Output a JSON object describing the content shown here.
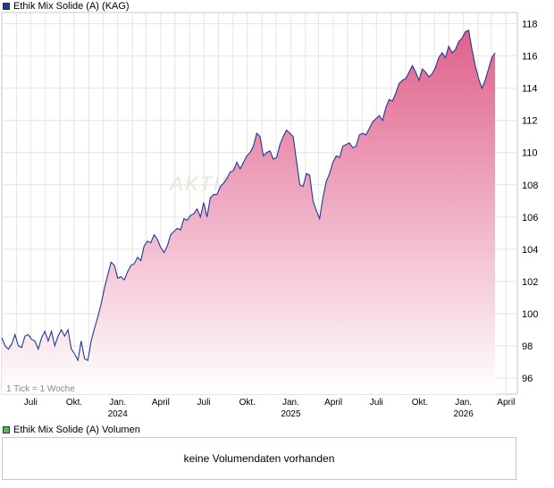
{
  "price_legend": {
    "label": "Ethik Mix Solide (A) (KAG)",
    "color": "#1f3a93"
  },
  "volume_legend": {
    "label": "Ethik Mix Solide (A) Volumen",
    "color": "#5cb85c"
  },
  "volume_message": "keine Volumendaten vorhanden",
  "tick_note": "1 Tick = 1 Woche",
  "watermark": "AKTIEN",
  "chart_data": {
    "type": "area",
    "title": "",
    "xlabel": "",
    "ylabel": "",
    "ylim": [
      95,
      118.7
    ],
    "y_ticks": [
      "96",
      "98",
      "100",
      "102",
      "104",
      "106",
      "108",
      "110",
      "112",
      "114",
      "116",
      "118"
    ],
    "x_start": "2023-05-01",
    "x_end": "2026-04-25",
    "x_ticks": [
      {
        "date": "2023-07-01",
        "label": "Juli",
        "sub": ""
      },
      {
        "date": "2023-10-01",
        "label": "Okt.",
        "sub": ""
      },
      {
        "date": "2024-01-01",
        "label": "Jan.",
        "sub": "2024"
      },
      {
        "date": "2024-04-01",
        "label": "April",
        "sub": ""
      },
      {
        "date": "2024-07-01",
        "label": "Juli",
        "sub": ""
      },
      {
        "date": "2024-10-01",
        "label": "Okt.",
        "sub": ""
      },
      {
        "date": "2025-01-01",
        "label": "Jan.",
        "sub": "2025"
      },
      {
        "date": "2025-04-01",
        "label": "April",
        "sub": ""
      },
      {
        "date": "2025-07-01",
        "label": "Juli",
        "sub": ""
      },
      {
        "date": "2025-10-01",
        "label": "Okt.",
        "sub": ""
      },
      {
        "date": "2026-01-01",
        "label": "Jan.",
        "sub": "2026"
      },
      {
        "date": "2026-04-01",
        "label": "April",
        "sub": ""
      }
    ],
    "series": [
      {
        "line_color": "#1f3a93",
        "fill_top": "#e0608c",
        "fill_bottom": "#ffffff",
        "points": [
          [
            "2023-05-01",
            98.5
          ],
          [
            "2023-05-08",
            98.0
          ],
          [
            "2023-05-15",
            97.8
          ],
          [
            "2023-05-22",
            98.1
          ],
          [
            "2023-05-29",
            98.7
          ],
          [
            "2023-06-05",
            98.0
          ],
          [
            "2023-06-12",
            97.9
          ],
          [
            "2023-06-19",
            98.6
          ],
          [
            "2023-06-26",
            98.7
          ],
          [
            "2023-07-03",
            98.4
          ],
          [
            "2023-07-10",
            98.3
          ],
          [
            "2023-07-17",
            97.8
          ],
          [
            "2023-07-24",
            98.5
          ],
          [
            "2023-07-31",
            98.9
          ],
          [
            "2023-08-07",
            98.3
          ],
          [
            "2023-08-14",
            98.9
          ],
          [
            "2023-08-21",
            98.0
          ],
          [
            "2023-08-28",
            98.6
          ],
          [
            "2023-09-04",
            99.0
          ],
          [
            "2023-09-11",
            98.6
          ],
          [
            "2023-09-18",
            99.0
          ],
          [
            "2023-09-25",
            97.8
          ],
          [
            "2023-10-02",
            97.5
          ],
          [
            "2023-10-09",
            97.1
          ],
          [
            "2023-10-16",
            98.3
          ],
          [
            "2023-10-23",
            97.2
          ],
          [
            "2023-10-30",
            97.1
          ],
          [
            "2023-11-06",
            98.3
          ],
          [
            "2023-11-13",
            99.1
          ],
          [
            "2023-11-20",
            99.8
          ],
          [
            "2023-11-27",
            100.6
          ],
          [
            "2023-12-04",
            101.6
          ],
          [
            "2023-12-11",
            102.4
          ],
          [
            "2023-12-18",
            103.2
          ],
          [
            "2023-12-25",
            103.0
          ],
          [
            "2024-01-01",
            102.2
          ],
          [
            "2024-01-08",
            102.3
          ],
          [
            "2024-01-15",
            102.1
          ],
          [
            "2024-01-22",
            102.6
          ],
          [
            "2024-01-29",
            103.0
          ],
          [
            "2024-02-05",
            103.1
          ],
          [
            "2024-02-12",
            103.5
          ],
          [
            "2024-02-19",
            103.3
          ],
          [
            "2024-02-26",
            104.2
          ],
          [
            "2024-03-04",
            104.5
          ],
          [
            "2024-03-11",
            104.4
          ],
          [
            "2024-03-18",
            104.9
          ],
          [
            "2024-03-25",
            104.6
          ],
          [
            "2024-04-01",
            104.1
          ],
          [
            "2024-04-08",
            103.8
          ],
          [
            "2024-04-15",
            104.2
          ],
          [
            "2024-04-22",
            104.9
          ],
          [
            "2024-04-29",
            105.1
          ],
          [
            "2024-05-06",
            105.3
          ],
          [
            "2024-05-13",
            105.2
          ],
          [
            "2024-05-20",
            105.9
          ],
          [
            "2024-05-27",
            105.8
          ],
          [
            "2024-06-03",
            106.1
          ],
          [
            "2024-06-10",
            106.2
          ],
          [
            "2024-06-17",
            106.5
          ],
          [
            "2024-06-24",
            106.0
          ],
          [
            "2024-07-01",
            106.9
          ],
          [
            "2024-07-08",
            106.0
          ],
          [
            "2024-07-15",
            107.2
          ],
          [
            "2024-07-22",
            107.4
          ],
          [
            "2024-07-29",
            107.4
          ],
          [
            "2024-08-05",
            107.9
          ],
          [
            "2024-08-12",
            108.1
          ],
          [
            "2024-08-19",
            108.4
          ],
          [
            "2024-08-26",
            108.8
          ],
          [
            "2024-09-02",
            108.9
          ],
          [
            "2024-09-09",
            109.4
          ],
          [
            "2024-09-16",
            109.0
          ],
          [
            "2024-09-23",
            109.4
          ],
          [
            "2024-09-30",
            109.8
          ],
          [
            "2024-10-07",
            110.0
          ],
          [
            "2024-10-14",
            110.4
          ],
          [
            "2024-10-21",
            111.2
          ],
          [
            "2024-10-28",
            111.0
          ],
          [
            "2024-11-04",
            109.8
          ],
          [
            "2024-11-11",
            110.0
          ],
          [
            "2024-11-18",
            110.1
          ],
          [
            "2024-11-25",
            109.6
          ],
          [
            "2024-12-02",
            109.7
          ],
          [
            "2024-12-09",
            110.5
          ],
          [
            "2024-12-16",
            111.0
          ],
          [
            "2024-12-23",
            111.4
          ],
          [
            "2024-12-30",
            111.2
          ],
          [
            "2025-01-06",
            111.0
          ],
          [
            "2025-01-13",
            109.5
          ],
          [
            "2025-01-20",
            108.0
          ],
          [
            "2025-01-27",
            107.9
          ],
          [
            "2025-02-03",
            108.7
          ],
          [
            "2025-02-10",
            108.6
          ],
          [
            "2025-02-17",
            107.0
          ],
          [
            "2025-02-24",
            106.4
          ],
          [
            "2025-03-03",
            105.9
          ],
          [
            "2025-03-10",
            107.2
          ],
          [
            "2025-03-17",
            108.2
          ],
          [
            "2025-03-24",
            108.7
          ],
          [
            "2025-03-31",
            109.4
          ],
          [
            "2025-04-07",
            109.8
          ],
          [
            "2025-04-14",
            109.7
          ],
          [
            "2025-04-21",
            110.4
          ],
          [
            "2025-04-28",
            110.5
          ],
          [
            "2025-05-05",
            110.6
          ],
          [
            "2025-05-12",
            110.3
          ],
          [
            "2025-05-19",
            110.4
          ],
          [
            "2025-05-26",
            111.1
          ],
          [
            "2025-06-02",
            111.2
          ],
          [
            "2025-06-09",
            111.1
          ],
          [
            "2025-06-16",
            111.5
          ],
          [
            "2025-06-23",
            111.9
          ],
          [
            "2025-06-30",
            112.1
          ],
          [
            "2025-07-07",
            112.3
          ],
          [
            "2025-07-14",
            112.0
          ],
          [
            "2025-07-21",
            112.8
          ],
          [
            "2025-07-28",
            113.3
          ],
          [
            "2025-08-04",
            113.2
          ],
          [
            "2025-08-11",
            113.7
          ],
          [
            "2025-08-18",
            114.3
          ],
          [
            "2025-08-25",
            114.5
          ],
          [
            "2025-09-01",
            114.6
          ],
          [
            "2025-09-08",
            115.0
          ],
          [
            "2025-09-15",
            115.4
          ],
          [
            "2025-09-22",
            115.0
          ],
          [
            "2025-09-29",
            114.5
          ],
          [
            "2025-10-06",
            115.2
          ],
          [
            "2025-10-13",
            115.0
          ],
          [
            "2025-10-20",
            114.7
          ],
          [
            "2025-10-27",
            114.9
          ],
          [
            "2025-11-03",
            115.3
          ],
          [
            "2025-11-10",
            115.9
          ],
          [
            "2025-11-17",
            116.2
          ],
          [
            "2025-11-24",
            115.9
          ],
          [
            "2025-12-01",
            116.6
          ],
          [
            "2025-12-08",
            116.2
          ],
          [
            "2025-12-15",
            116.4
          ],
          [
            "2025-12-22",
            116.9
          ],
          [
            "2025-12-29",
            117.1
          ],
          [
            "2026-01-05",
            117.5
          ],
          [
            "2026-01-12",
            117.6
          ],
          [
            "2026-01-19",
            116.4
          ],
          [
            "2026-01-26",
            115.4
          ],
          [
            "2026-02-02",
            114.6
          ],
          [
            "2026-02-09",
            114.0
          ],
          [
            "2026-02-16",
            114.5
          ],
          [
            "2026-02-23",
            115.2
          ],
          [
            "2026-03-02",
            115.9
          ],
          [
            "2026-03-09",
            116.2
          ]
        ]
      }
    ],
    "grid": true
  }
}
